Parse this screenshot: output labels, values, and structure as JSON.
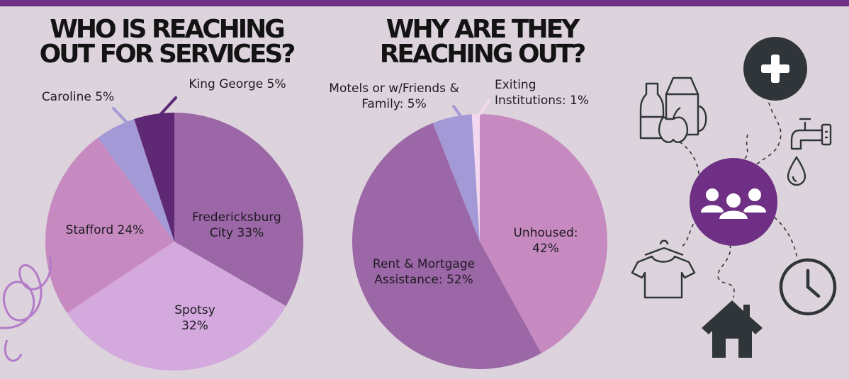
{
  "headings": {
    "left": [
      "WHO IS REACHING",
      "OUT FOR SERVICES?"
    ],
    "right": [
      "WHY ARE THEY",
      "REACHING OUT?"
    ]
  },
  "colors": {
    "background": "#dcd3dc",
    "accent": "#6e2f84",
    "icon_dark": "#2f3538"
  },
  "chart_data": [
    {
      "type": "pie",
      "title": "WHO IS REACHING OUT FOR SERVICES?",
      "slices": [
        {
          "label": "Fredericksburg City",
          "value": 33,
          "color": "#9b67a6",
          "label_lines": [
            "Fredericksburg",
            "City 33%"
          ]
        },
        {
          "label": "Spotsy",
          "value": 32,
          "color": "#d3a9de",
          "label_lines": [
            "Spotsy",
            "32%"
          ]
        },
        {
          "label": "Stafford",
          "value": 24,
          "color": "#c78ac0",
          "label_lines": [
            "Stafford 24%"
          ]
        },
        {
          "label": "Caroline",
          "value": 5,
          "color": "#a399d6",
          "label_lines": [
            "Caroline 5%"
          ]
        },
        {
          "label": "King George",
          "value": 5,
          "color": "#5e2874",
          "label_lines": [
            "King George 5%"
          ]
        }
      ]
    },
    {
      "type": "pie",
      "title": "WHY ARE THEY REACHING OUT?",
      "slices": [
        {
          "label": "Unhoused",
          "value": 42,
          "color": "#c78ac0",
          "label_lines": [
            "Unhoused:",
            "42%"
          ]
        },
        {
          "label": "Rent & Mortgage Assistance",
          "value": 52,
          "color": "#9b67a6",
          "label_lines": [
            "Rent & Mortgage",
            "Assistance: 52%"
          ]
        },
        {
          "label": "Motels or w/Friends & Family",
          "value": 5,
          "color": "#a399d6",
          "label_lines": [
            "Motels or w/Friends &",
            "Family: 5%"
          ]
        },
        {
          "label": "Exiting Institutions",
          "value": 1,
          "color": "#f3d8ef",
          "label_lines": [
            "Exiting",
            "Institutions: 1%"
          ]
        }
      ]
    }
  ],
  "icons": [
    "groceries-icon",
    "plus-icon",
    "faucet-icon",
    "water-drop-icon",
    "people-icon",
    "shirt-icon",
    "house-icon",
    "clock-icon",
    "ribbon-swirl-icon"
  ]
}
